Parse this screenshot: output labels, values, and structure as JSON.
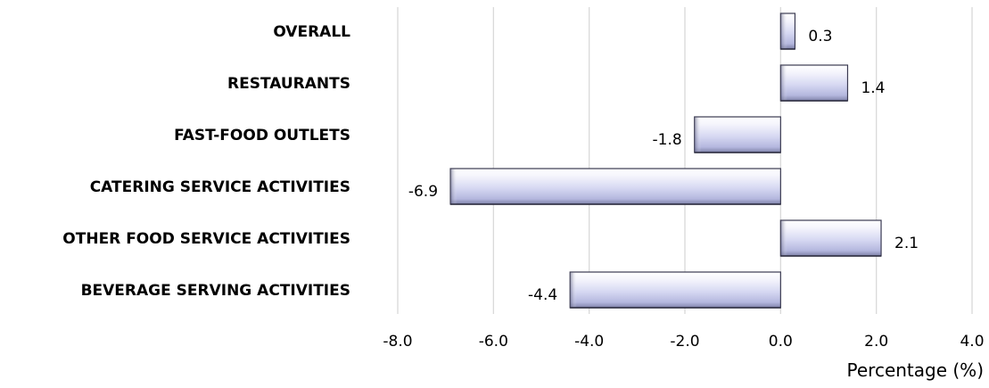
{
  "chart_data": {
    "type": "bar",
    "orientation": "horizontal",
    "categories": [
      "OVERALL",
      "RESTAURANTS",
      "FAST-FOOD OUTLETS",
      "CATERING SERVICE ACTIVITIES",
      "OTHER FOOD SERVICE ACTIVITIES",
      "BEVERAGE SERVING ACTIVITIES"
    ],
    "values": [
      0.3,
      1.4,
      -1.8,
      -6.9,
      2.1,
      -4.4
    ],
    "value_labels": [
      "0.3",
      "1.4",
      "-1.8",
      "-6.9",
      "2.1",
      "-4.4"
    ],
    "title": "",
    "xlabel": "Percentage (%)",
    "ylabel": "",
    "xlim": [
      -8.0,
      4.0
    ],
    "x_ticks": [
      -8.0,
      -6.0,
      -4.0,
      -2.0,
      0.0,
      2.0,
      4.0
    ],
    "x_tick_labels": [
      "-8.0",
      "-6.0",
      "-4.0",
      "-2.0",
      "0.0",
      "2.0",
      "4.0"
    ],
    "grid": true,
    "legend": "none",
    "bar_color": "#d6d8f2",
    "bar_edge_color": "#3b3b52"
  }
}
